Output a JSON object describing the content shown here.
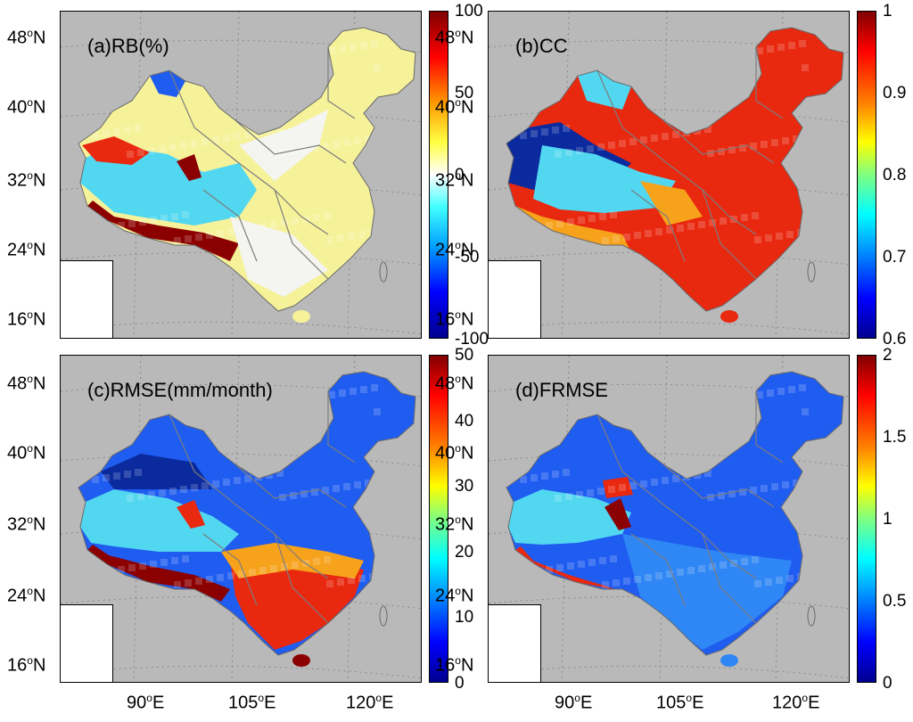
{
  "panels": [
    {
      "id": "a",
      "label": "(a)RB(%)",
      "colorbar": {
        "ticks": [
          "100",
          "50",
          "0",
          "-50",
          "-100"
        ],
        "min": -100,
        "max": 100,
        "scheme": "diverging"
      }
    },
    {
      "id": "b",
      "label": "(b)CC",
      "colorbar": {
        "ticks": [
          "1",
          "0.9",
          "0.8",
          "0.7",
          "0.6"
        ],
        "min": 0.6,
        "max": 1,
        "scheme": "jet"
      }
    },
    {
      "id": "c",
      "label": "(c)RMSE(mm/month)",
      "colorbar": {
        "ticks": [
          "50",
          "40",
          "30",
          "20",
          "10",
          "0"
        ],
        "min": 0,
        "max": 50,
        "scheme": "jet"
      }
    },
    {
      "id": "d",
      "label": "(d)FRMSE",
      "colorbar": {
        "ticks": [
          "2",
          "1.5",
          "1",
          "0.5",
          "0"
        ],
        "min": 0,
        "max": 2,
        "scheme": "jet"
      }
    }
  ],
  "lat_labels": [
    "48",
    "40",
    "32",
    "24",
    "16"
  ],
  "lat_suffix": "N",
  "lon_labels": [
    "90",
    "105",
    "120"
  ],
  "lon_suffix": "E",
  "degree_symbol": "o",
  "colors": {
    "background": "#b9b9b9",
    "dark_red": "#8b0000",
    "red": "#e8280f",
    "orange": "#f7a21b",
    "yellow": "#f6f29a",
    "white": "#f4f4f0",
    "cyan": "#52d7f0",
    "blue": "#1f5cf0",
    "dark_blue": "#0a2a9e",
    "border_grey": "#7d7d7d"
  }
}
